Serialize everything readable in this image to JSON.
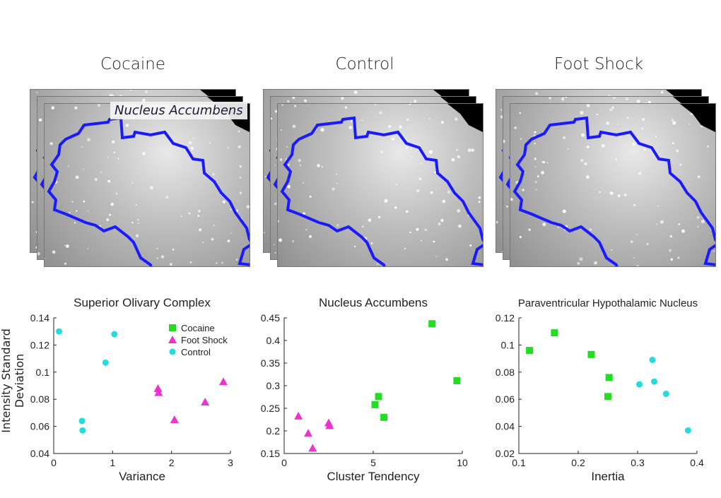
{
  "columns": [
    {
      "title": "Cocaine",
      "overlay_label": "Nucleus Accumbens"
    },
    {
      "title": "Control",
      "overlay_label": ""
    },
    {
      "title": "Foot Shock",
      "overlay_label": ""
    }
  ],
  "y_axis_label": "Intensity Standard Deviation",
  "colors": {
    "cocaine": "#22dd22",
    "foot_shock": "#ee33cc",
    "control": "#22dddd",
    "outline": "#1a1aff"
  },
  "chart_data": [
    {
      "type": "scatter",
      "title": "Superior Olivary Complex",
      "xlabel": "Variance",
      "ylabel": "Intensity Standard Deviation",
      "xlim": [
        0,
        3
      ],
      "ylim": [
        0.04,
        0.14
      ],
      "xticks": [
        "0",
        "1",
        "2",
        "3"
      ],
      "yticks": [
        "0.04",
        "0.06",
        "0.08",
        "0.1",
        "0.12",
        "0.14"
      ],
      "legend": [
        "Cocaine",
        "Foot Shock",
        "Control"
      ],
      "series": [
        {
          "name": "Foot Shock",
          "marker": "triangle",
          "color": "#ee33cc",
          "points": [
            [
              1.77,
              0.088
            ],
            [
              1.78,
              0.085
            ],
            [
              2.05,
              0.065
            ],
            [
              2.57,
              0.078
            ],
            [
              2.88,
              0.093
            ]
          ]
        },
        {
          "name": "Control",
          "marker": "circle",
          "color": "#22dddd",
          "points": [
            [
              0.09,
              0.13
            ],
            [
              0.48,
              0.064
            ],
            [
              0.49,
              0.057
            ],
            [
              0.88,
              0.107
            ],
            [
              1.03,
              0.128
            ]
          ]
        }
      ]
    },
    {
      "type": "scatter",
      "title": "Nucleus Accumbens",
      "xlabel": "Cluster Tendency",
      "ylabel": "",
      "xlim": [
        0,
        10
      ],
      "ylim": [
        0.15,
        0.45
      ],
      "xticks": [
        "0",
        "5",
        "10"
      ],
      "yticks": [
        "0.15",
        "0.2",
        "0.25",
        "0.3",
        "0.35",
        "0.4",
        "0.45"
      ],
      "series": [
        {
          "name": "Cocaine",
          "marker": "square",
          "color": "#22dd22",
          "points": [
            [
              5.1,
              0.258
            ],
            [
              5.3,
              0.276
            ],
            [
              5.6,
              0.23
            ],
            [
              8.3,
              0.437
            ],
            [
              9.7,
              0.311
            ]
          ]
        },
        {
          "name": "Foot Shock",
          "marker": "triangle",
          "color": "#ee33cc",
          "points": [
            [
              0.8,
              0.233
            ],
            [
              1.35,
              0.195
            ],
            [
              1.6,
              0.162
            ],
            [
              2.5,
              0.218
            ],
            [
              2.55,
              0.212
            ]
          ]
        }
      ]
    },
    {
      "type": "scatter",
      "title": "Paraventricular Hypothalamic Nucleus",
      "xlabel": "Inertia",
      "ylabel": "",
      "xlim": [
        0.1,
        0.4
      ],
      "ylim": [
        0.02,
        0.12
      ],
      "xticks": [
        "0.1",
        "0.2",
        "0.3",
        "0.4"
      ],
      "yticks": [
        "0.02",
        "0.04",
        "0.06",
        "0.08",
        "0.1",
        "0.12"
      ],
      "series": [
        {
          "name": "Cocaine",
          "marker": "square",
          "color": "#22dd22",
          "points": [
            [
              0.118,
              0.096
            ],
            [
              0.16,
              0.109
            ],
            [
              0.222,
              0.093
            ],
            [
              0.252,
              0.076
            ],
            [
              0.25,
              0.062
            ]
          ]
        },
        {
          "name": "Control",
          "marker": "circle",
          "color": "#22dddd",
          "points": [
            [
              0.303,
              0.071
            ],
            [
              0.325,
              0.089
            ],
            [
              0.328,
              0.073
            ],
            [
              0.348,
              0.064
            ],
            [
              0.385,
              0.037
            ]
          ]
        }
      ]
    }
  ]
}
